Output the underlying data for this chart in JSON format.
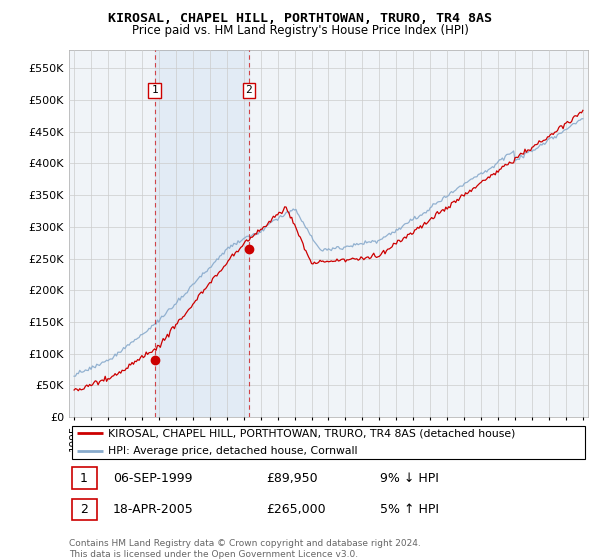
{
  "title": "KIROSAL, CHAPEL HILL, PORTHTOWAN, TRURO, TR4 8AS",
  "subtitle": "Price paid vs. HM Land Registry's House Price Index (HPI)",
  "legend_line1": "KIROSAL, CHAPEL HILL, PORTHTOWAN, TRURO, TR4 8AS (detached house)",
  "legend_line2": "HPI: Average price, detached house, Cornwall",
  "footer": "Contains HM Land Registry data © Crown copyright and database right 2024.\nThis data is licensed under the Open Government Licence v3.0.",
  "sale1_date": "06-SEP-1999",
  "sale1_price": "£89,950",
  "sale1_hpi": "9% ↓ HPI",
  "sale2_date": "18-APR-2005",
  "sale2_price": "£265,000",
  "sale2_hpi": "5% ↑ HPI",
  "red_color": "#cc0000",
  "blue_color": "#88aacc",
  "shade_color": "#ddeeff",
  "sale1_x": 1999.75,
  "sale1_y": 89950,
  "sale2_x": 2005.3,
  "sale2_y": 265000,
  "ylim": [
    0,
    578000
  ],
  "xlim": [
    1994.7,
    2025.3
  ],
  "yticks": [
    0,
    50000,
    100000,
    150000,
    200000,
    250000,
    300000,
    350000,
    400000,
    450000,
    500000,
    550000
  ],
  "ytick_labels": [
    "£0",
    "£50K",
    "£100K",
    "£150K",
    "£200K",
    "£250K",
    "£300K",
    "£350K",
    "£400K",
    "£450K",
    "£500K",
    "£550K"
  ],
  "background_color": "#ffffff",
  "grid_color": "#cccccc",
  "plot_bg_color": "#f0f4f8"
}
